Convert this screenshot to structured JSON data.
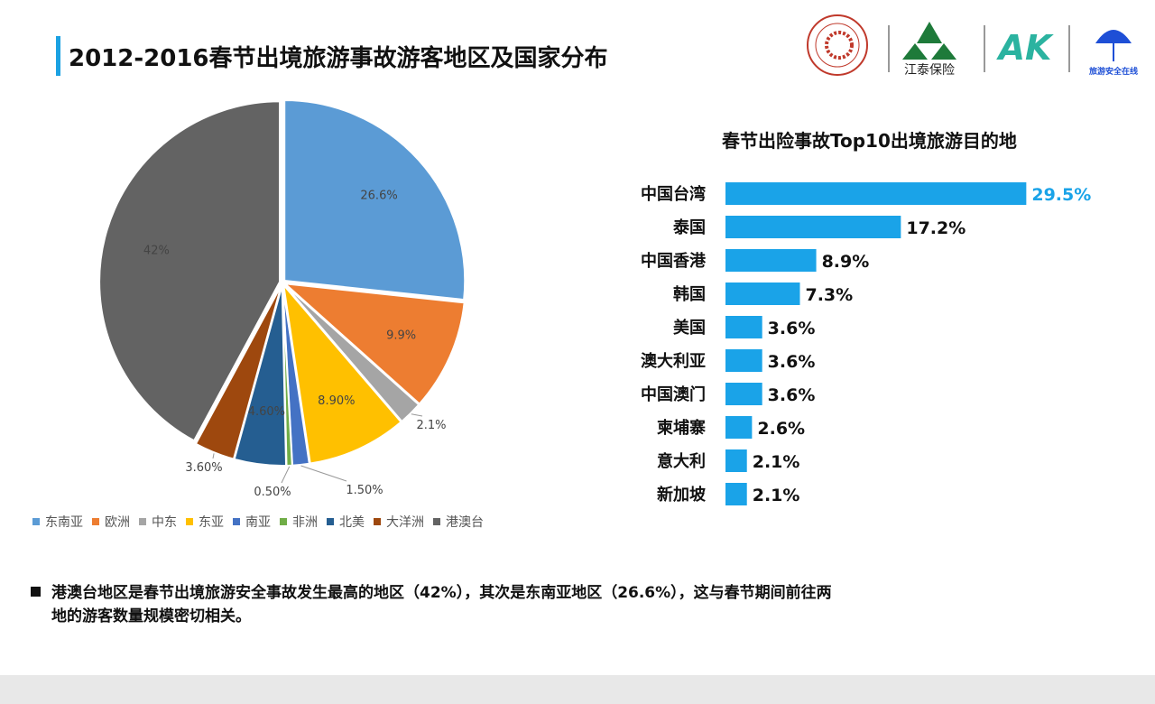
{
  "title": "2012-2016春节出境旅游事故游客地区及国家分布",
  "logos": [
    "HUAQIAO UNIVERSITY",
    "江泰保险",
    "AK",
    "旅游安全在线"
  ],
  "note": {
    "line1": "港澳台地区是春节出境旅游安全事故发生最高的地区（42%），其次是东南亚地区（26.6%），这与春节期间前往两",
    "line2": "地的游客数量规模密切相关。"
  },
  "chart_data": [
    {
      "type": "pie",
      "title": "",
      "categories": [
        "东南亚",
        "欧洲",
        "中东",
        "东亚",
        "南亚",
        "非洲",
        "北美",
        "大洋洲",
        "港澳台"
      ],
      "values": [
        26.6,
        9.9,
        2.1,
        8.9,
        1.5,
        0.5,
        4.6,
        3.6,
        42
      ],
      "labels": [
        "26.6%",
        "9.9%",
        "2.1%",
        "8.90%",
        "1.50%",
        "0.50%",
        "4.60%",
        "3.60%",
        "42%"
      ],
      "colors": [
        "#5b9bd5",
        "#ed7d31",
        "#a5a5a5",
        "#ffc000",
        "#4472c4",
        "#70ad47",
        "#255e91",
        "#9e480e",
        "#636363"
      ],
      "legend": "bottom"
    },
    {
      "type": "bar",
      "orientation": "horizontal",
      "title": "春节出险事故Top10出境旅游目的地",
      "categories": [
        "中国台湾",
        "泰国",
        "中国香港",
        "韩国",
        "美国",
        "澳大利亚",
        "中国澳门",
        "柬埔寨",
        "意大利",
        "新加坡"
      ],
      "values": [
        29.5,
        17.2,
        8.9,
        7.3,
        3.6,
        3.6,
        3.6,
        2.6,
        2.1,
        2.1
      ],
      "labels": [
        "29.5%",
        "17.2%",
        "8.9%",
        "7.3%",
        "3.6%",
        "3.6%",
        "3.6%",
        "2.6%",
        "2.1%",
        "2.1%"
      ],
      "color": "#1aa3e8",
      "highlight_label_color": "#1aa3e8"
    }
  ]
}
